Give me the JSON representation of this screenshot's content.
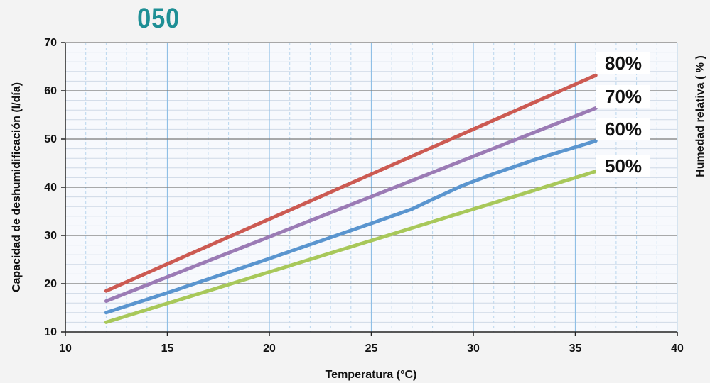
{
  "chart_data": {
    "type": "line",
    "title": "050",
    "xlabel": "Temperatura (°C)",
    "ylabel": "Capacidad de deshumidificación (l/día)",
    "y2label": "Humedad relativa ( % )",
    "xlim": [
      10,
      40
    ],
    "ylim": [
      10,
      70
    ],
    "xticks": [
      10,
      15,
      20,
      25,
      30,
      35,
      40
    ],
    "yticks": [
      10,
      20,
      30,
      40,
      50,
      60,
      70
    ],
    "grid": true,
    "legend": "right",
    "series": [
      {
        "name": "80%",
        "color": "#cc5a52",
        "x": [
          12,
          36
        ],
        "y": [
          18.5,
          63.2
        ]
      },
      {
        "name": "70%",
        "color": "#9b7bb5",
        "x": [
          12,
          36
        ],
        "y": [
          16.4,
          56.4
        ]
      },
      {
        "name": "60%",
        "color": "#5a95cf",
        "x": [
          12,
          15,
          20,
          25,
          27,
          28,
          29.5,
          31,
          33,
          36
        ],
        "y": [
          14.0,
          18.1,
          25.2,
          32.5,
          35.5,
          37.5,
          40.4,
          42.8,
          45.7,
          49.6
        ]
      },
      {
        "name": "50%",
        "color": "#a8c85a",
        "x": [
          12,
          36
        ],
        "y": [
          12.0,
          43.3
        ]
      }
    ]
  }
}
